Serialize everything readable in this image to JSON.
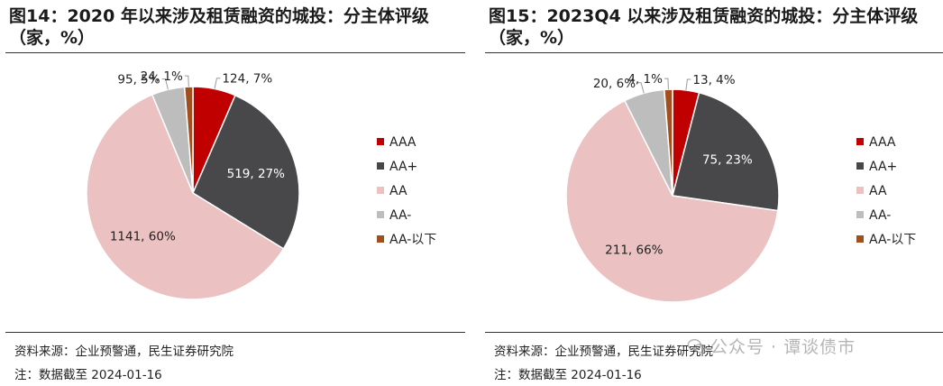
{
  "legend_categories": [
    "AAA",
    "AA+",
    "AA",
    "AA-",
    "AA-以下"
  ],
  "colors": [
    "#c00000",
    "#48484a",
    "#ebc1c1",
    "#bdbdbd",
    "#a0501e"
  ],
  "watermark": {
    "text": "公众号 · 谭谈债市",
    "icon": "wechat-icon"
  },
  "chart_data": [
    {
      "type": "pie",
      "title": "图14：2020 年以来涉及租赁融资的城投：分主体评级\n（家，%）",
      "source": "资料来源：企业预警通，民生证券研究院",
      "note": "注：数据截至 2024-01-16",
      "legend_position": "right",
      "categories": [
        "AAA",
        "AA+",
        "AA",
        "AA-",
        "AA-以下"
      ],
      "values": [
        124,
        519,
        1141,
        95,
        24
      ],
      "percents": [
        7,
        27,
        60,
        5,
        1
      ],
      "data_labels": [
        "124, 7%",
        "519, 27%",
        "1141, 60%",
        "95, 5%",
        "24, 1%"
      ]
    },
    {
      "type": "pie",
      "title": "图15：2023Q4 以来涉及租赁融资的城投：分主体评级\n（家，%）",
      "source": "资料来源：企业预警通，民生证券研究院",
      "note": "注：数据截至 2024-01-16",
      "legend_position": "right",
      "categories": [
        "AAA",
        "AA+",
        "AA",
        "AA-",
        "AA-以下"
      ],
      "values": [
        13,
        75,
        211,
        20,
        4
      ],
      "percents": [
        4,
        23,
        66,
        6,
        1
      ],
      "data_labels": [
        "13, 4%",
        "75, 23%",
        "211, 66%",
        "20, 6%",
        "4, 1%"
      ]
    }
  ]
}
